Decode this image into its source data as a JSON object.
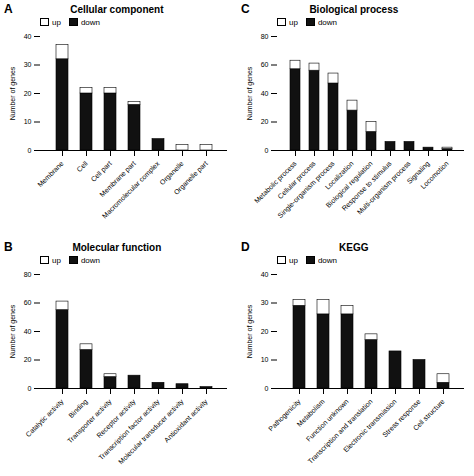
{
  "chart_data": [
    {
      "type": "bar",
      "title": "Cellular component",
      "annotations": [
        "A"
      ],
      "categories": [
        "Membrane",
        "Cell",
        "Cell part",
        "Membrane part",
        "Macromolecular complex",
        "Organelle",
        "Organelle part"
      ],
      "series": [
        {
          "name": "up",
          "color": "#ffffff",
          "values": [
            5,
            2,
            2,
            1,
            0,
            2,
            2
          ]
        },
        {
          "name": "down",
          "color": "#111111",
          "values": [
            32,
            20,
            20,
            16,
            4,
            0,
            0
          ]
        }
      ],
      "stacked": true,
      "ylabel": "Number of genes",
      "ylim": [
        0,
        40
      ],
      "yticks": [
        0,
        10,
        20,
        30,
        40
      ],
      "legend": "upper left",
      "grid": false
    },
    {
      "type": "bar",
      "title": "Biological process",
      "annotations": [
        "C"
      ],
      "categories": [
        "Metabolic process",
        "Cellular process",
        "Single-organism process",
        "Localization",
        "Biological regulation",
        "Response to stimulus",
        "Multi-organism process",
        "Signaling",
        "Locomotion"
      ],
      "series": [
        {
          "name": "up",
          "color": "#ffffff",
          "values": [
            6,
            5,
            7,
            7,
            7,
            0,
            0,
            0,
            1
          ]
        },
        {
          "name": "down",
          "color": "#111111",
          "values": [
            57,
            56,
            47,
            28,
            13,
            6,
            6,
            2,
            1
          ]
        }
      ],
      "stacked": true,
      "ylabel": "Number of genes",
      "ylim": [
        0,
        80
      ],
      "yticks": [
        0,
        20,
        40,
        60,
        80
      ],
      "legend": "upper left",
      "grid": false
    },
    {
      "type": "bar",
      "title": "Molecular function",
      "annotations": [
        "B"
      ],
      "categories": [
        "Catalytic activity",
        "Binding",
        "Transporter activity",
        "Receptor activity",
        "Transcription factor activity",
        "Molecular transducer activity",
        "Antioxidant activity"
      ],
      "series": [
        {
          "name": "up",
          "color": "#ffffff",
          "values": [
            6,
            4,
            2,
            0,
            0,
            0,
            0
          ]
        },
        {
          "name": "down",
          "color": "#111111",
          "values": [
            55,
            27,
            8,
            9,
            4,
            3,
            1
          ]
        }
      ],
      "stacked": true,
      "ylabel": "Number of genes",
      "ylim": [
        0,
        80
      ],
      "yticks": [
        0,
        20,
        40,
        60,
        80
      ],
      "legend": "upper left",
      "grid": false
    },
    {
      "type": "bar",
      "title": "KEGG",
      "annotations": [
        "D"
      ],
      "categories": [
        "Pathogenicity",
        "Metabolism",
        "Function unknown",
        "Transcription and translation",
        "Electronic transmission",
        "Stress response",
        "Cell structure"
      ],
      "series": [
        {
          "name": "up",
          "color": "#ffffff",
          "values": [
            2,
            5,
            3,
            2,
            0,
            0,
            3
          ]
        },
        {
          "name": "down",
          "color": "#111111",
          "values": [
            29,
            26,
            26,
            17,
            13,
            10,
            2
          ]
        }
      ],
      "stacked": true,
      "ylabel": "Number of genes",
      "ylim": [
        0,
        40
      ],
      "yticks": [
        0,
        10,
        20,
        30,
        40
      ],
      "legend": "upper left",
      "grid": false
    }
  ]
}
